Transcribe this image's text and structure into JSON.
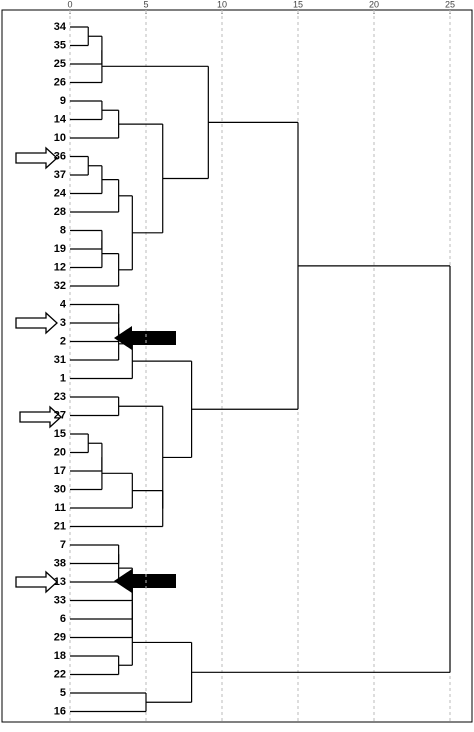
{
  "chart_data": {
    "type": "dendrogram",
    "xlim": [
      0,
      25
    ],
    "xticks": [
      0,
      5,
      10,
      15,
      20,
      25
    ],
    "grid": true,
    "color": "#000000",
    "tree": {
      "height": 25.0,
      "children": [
        {
          "height": 15.0,
          "children": [
            {
              "height": 9.1,
              "children": [
                {
                  "height": 2.1,
                  "children": [
                    {
                      "height": 2.1,
                      "children": [
                        {
                          "height": 1.2,
                          "children": [
                            {
                              "label": "34"
                            },
                            {
                              "label": "35"
                            }
                          ]
                        },
                        {
                          "label": "25"
                        }
                      ]
                    },
                    {
                      "label": "26"
                    }
                  ]
                },
                {
                  "height": 6.1,
                  "children": [
                    {
                      "height": 3.2,
                      "children": [
                        {
                          "height": 2.1,
                          "children": [
                            {
                              "label": "9"
                            },
                            {
                              "label": "14"
                            }
                          ]
                        },
                        {
                          "label": "10"
                        }
                      ]
                    },
                    {
                      "height": 4.1,
                      "children": [
                        {
                          "height": 3.2,
                          "children": [
                            {
                              "height": 2.1,
                              "children": [
                                {
                                  "height": 1.2,
                                  "children": [
                                    {
                                      "label": "36"
                                    },
                                    {
                                      "label": "37"
                                    }
                                  ]
                                },
                                {
                                  "label": "24"
                                }
                              ]
                            },
                            {
                              "label": "28"
                            }
                          ]
                        },
                        {
                          "height": 3.2,
                          "children": [
                            {
                              "height": 2.1,
                              "children": [
                                {
                                  "height": 2.1,
                                  "children": [
                                    {
                                      "label": "8"
                                    },
                                    {
                                      "label": "19"
                                    }
                                  ]
                                },
                                {
                                  "label": "12"
                                }
                              ]
                            },
                            {
                              "label": "32"
                            }
                          ]
                        }
                      ]
                    }
                  ]
                }
              ]
            },
            {
              "height": 8.0,
              "children": [
                {
                  "height": 4.1,
                  "children": [
                    {
                      "height": 3.2,
                      "children": [
                        {
                          "height": 3.2,
                          "children": [
                            {
                              "height": 3.2,
                              "children": [
                                {
                                  "label": "4"
                                },
                                {
                                  "label": "3"
                                }
                              ]
                            },
                            {
                              "label": "2"
                            }
                          ]
                        },
                        {
                          "label": "31"
                        }
                      ]
                    },
                    {
                      "label": "1"
                    }
                  ]
                },
                {
                  "height": 6.1,
                  "children": [
                    {
                      "height": 3.2,
                      "children": [
                        {
                          "label": "23"
                        },
                        {
                          "label": "27"
                        }
                      ]
                    },
                    {
                      "height": 6.1,
                      "children": [
                        {
                          "height": 4.1,
                          "children": [
                            {
                              "height": 2.1,
                              "children": [
                                {
                                  "height": 2.1,
                                  "children": [
                                    {
                                      "height": 1.2,
                                      "children": [
                                        {
                                          "label": "15"
                                        },
                                        {
                                          "label": "20"
                                        }
                                      ]
                                    },
                                    {
                                      "label": "17"
                                    }
                                  ]
                                },
                                {
                                  "label": "30"
                                }
                              ]
                            },
                            {
                              "label": "11"
                            }
                          ]
                        },
                        {
                          "label": "21"
                        }
                      ]
                    }
                  ]
                }
              ]
            }
          ]
        },
        {
          "height": 8.0,
          "children": [
            {
              "height": 4.1,
              "children": [
                {
                  "height": 4.1,
                  "children": [
                    {
                      "height": 4.1,
                      "children": [
                        {
                          "height": 4.1,
                          "children": [
                            {
                              "height": 3.2,
                              "children": [
                                {
                                  "height": 3.2,
                                  "children": [
                                    {
                                      "label": "7"
                                    },
                                    {
                                      "label": "38"
                                    }
                                  ]
                                },
                                {
                                  "label": "13"
                                }
                              ]
                            },
                            {
                              "label": "33"
                            }
                          ]
                        },
                        {
                          "label": "6"
                        }
                      ]
                    },
                    {
                      "label": "29"
                    }
                  ]
                },
                {
                  "height": 3.2,
                  "children": [
                    {
                      "label": "18"
                    },
                    {
                      "label": "22"
                    }
                  ]
                }
              ]
            },
            {
              "height": 5.0,
              "children": [
                {
                  "label": "5"
                },
                {
                  "label": "16"
                }
              ]
            }
          ]
        }
      ]
    }
  }
}
